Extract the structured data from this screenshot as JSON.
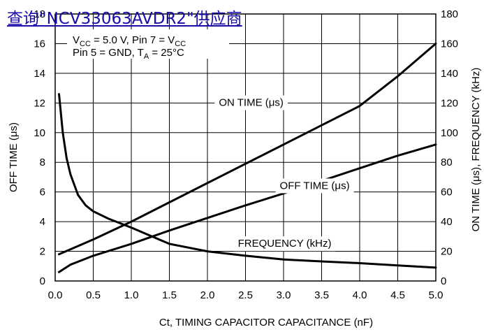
{
  "overlay_link": {
    "text": "查询\"NCV33063AVDR2\"供应商"
  },
  "chart_data": {
    "type": "line",
    "xlabel": "Ct, TIMING CAPACITOR CAPACITANCE (nF)",
    "ylabel_left": "OFF TIME (μs)",
    "ylabel_right": "ON TIME (μs), FREQUENCY (kHz)",
    "xlim": [
      0,
      5
    ],
    "ylim_left": [
      0,
      18
    ],
    "ylim_right": [
      0,
      180
    ],
    "x_ticks": [
      "0.0",
      "0.5",
      "1.0",
      "1.5",
      "2.0",
      "2.5",
      "3.0",
      "3.5",
      "4.0",
      "4.5",
      "5.0"
    ],
    "y_left_ticks": [
      "0",
      "2",
      "4",
      "6",
      "8",
      "10",
      "12",
      "14",
      "16",
      "18"
    ],
    "y_right_ticks": [
      "0",
      "20",
      "40",
      "60",
      "80",
      "100",
      "120",
      "140",
      "160",
      "180"
    ],
    "grid": true,
    "conditions": {
      "line1_pre": "V",
      "line1_sub1": "CC",
      "line1_mid": " = 5.0 V, Pin 7 = V",
      "line1_sub2": "CC",
      "line2_pre": "Pin 5 = GND, T",
      "line2_sub": "A",
      "line2_post": " = 25°C"
    },
    "series": [
      {
        "name": "ON TIME (μs)",
        "axis": "right",
        "x": [
          0.05,
          0.5,
          1.0,
          1.5,
          2.0,
          2.5,
          3.0,
          3.5,
          4.0,
          4.5,
          5.0
        ],
        "y": [
          18,
          28,
          40,
          53,
          66,
          79,
          92,
          105,
          118,
          138,
          160
        ]
      },
      {
        "name": "OFF TIME (μs)",
        "axis": "left",
        "x": [
          0.05,
          0.2,
          0.5,
          1.0,
          1.5,
          2.0,
          2.5,
          3.0,
          3.5,
          4.0,
          4.5,
          5.0
        ],
        "y": [
          0.6,
          1.1,
          1.7,
          2.5,
          3.4,
          4.25,
          5.1,
          5.9,
          6.75,
          7.6,
          8.45,
          9.2
        ]
      },
      {
        "name": "FREQUENCY (kHz)",
        "axis": "right",
        "x": [
          0.05,
          0.1,
          0.15,
          0.2,
          0.3,
          0.4,
          0.5,
          0.7,
          1.0,
          1.5,
          2.0,
          2.5,
          3.0,
          3.5,
          4.0,
          4.5,
          5.0
        ],
        "y": [
          126,
          100,
          83,
          72,
          58,
          51,
          47,
          42,
          36,
          25,
          20,
          17,
          14.5,
          13.2,
          12,
          10.5,
          9
        ]
      }
    ],
    "annotations": [
      {
        "text": "ON TIME (μs)",
        "x": 2.15,
        "y_right": 118
      },
      {
        "text": "OFF TIME (μs)",
        "x": 2.95,
        "y_right": 62
      },
      {
        "text": "FREQUENCY (kHz)",
        "x": 2.4,
        "y_right": 23
      }
    ]
  }
}
